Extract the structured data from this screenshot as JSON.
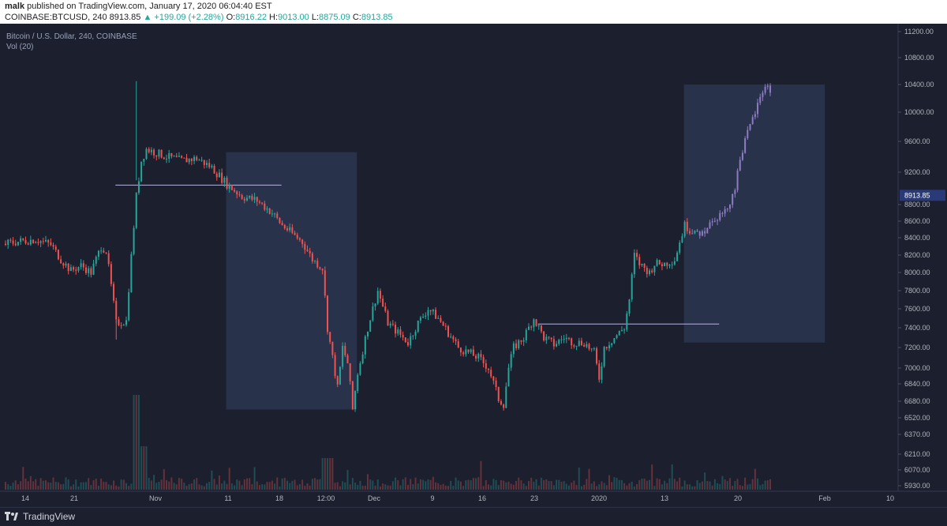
{
  "header": {
    "author": "malk",
    "published": "published on TradingView.com, January 17, 2020 06:04:40 EST",
    "symbol_line": "COINBASE:BTCUSD, 240",
    "last": "8913.85",
    "change": "▲ +199.09 (+2.28%)",
    "o_label": "O:",
    "o_value": "8916.22",
    "h_label": "H:",
    "h_value": "9013.00",
    "l_label": "L:",
    "l_value": "8875.09",
    "c_label": "C:",
    "c_value": "8913.85"
  },
  "legend": {
    "title": "Bitcoin / U.S. Dollar, 240, COINBASE",
    "volume": "Vol (20)"
  },
  "footer": {
    "brand": "TradingView"
  },
  "colors": {
    "background": "#1c1f2e",
    "up": "#26a69a",
    "down": "#ef5350",
    "highlight": "#8e7cc3",
    "box": "#2c3a55",
    "price_badge": "#2a3a78"
  },
  "chart_data": {
    "type": "candlestick",
    "instrument": "BTCUSD",
    "timeframe": "240",
    "current_price_label": "8913.85",
    "current_price": 8913.85,
    "y_ticks": [
      "11200.00",
      "10800.00",
      "10400.00",
      "10000.00",
      "9600.00",
      "9200.00",
      "8800.00",
      "8600.00",
      "8400.00",
      "8200.00",
      "8000.00",
      "7800.00",
      "7600.00",
      "7400.00",
      "7200.00",
      "7000.00",
      "6840.00",
      "6680.00",
      "6520.00",
      "6370.00",
      "6210.00",
      "6070.00",
      "5930.00"
    ],
    "x_ticks": [
      "14",
      "21",
      "Nov",
      "11",
      "18",
      "12:00",
      "Dec",
      "9",
      "16",
      "23",
      "2020",
      "13",
      "20",
      "Feb",
      "10"
    ],
    "price_path": [
      [
        0,
        8330
      ],
      [
        3,
        8360
      ],
      [
        6,
        8380
      ],
      [
        9,
        8320
      ],
      [
        11,
        8150
      ],
      [
        13,
        8020
      ],
      [
        15,
        8080
      ],
      [
        17,
        8000
      ],
      [
        19,
        8300
      ],
      [
        20,
        8250
      ],
      [
        22,
        7450
      ],
      [
        24,
        7470
      ],
      [
        26,
        8900
      ],
      [
        27,
        9350
      ],
      [
        28,
        9500
      ],
      [
        30,
        9450
      ],
      [
        32,
        9400
      ],
      [
        35,
        9350
      ],
      [
        38,
        9380
      ],
      [
        41,
        9260
      ],
      [
        44,
        9050
      ],
      [
        47,
        8900
      ],
      [
        50,
        8850
      ],
      [
        53,
        8700
      ],
      [
        55,
        8550
      ],
      [
        57,
        8450
      ],
      [
        59,
        8350
      ],
      [
        61,
        8150
      ],
      [
        63,
        8050
      ],
      [
        64,
        7400
      ],
      [
        66,
        6800
      ],
      [
        67,
        7200
      ],
      [
        68,
        7050
      ],
      [
        69,
        6600
      ],
      [
        70,
        6950
      ],
      [
        72,
        7400
      ],
      [
        74,
        7800
      ],
      [
        76,
        7450
      ],
      [
        78,
        7350
      ],
      [
        80,
        7250
      ],
      [
        82,
        7450
      ],
      [
        84,
        7600
      ],
      [
        86,
        7500
      ],
      [
        88,
        7350
      ],
      [
        90,
        7200
      ],
      [
        92,
        7150
      ],
      [
        94,
        7100
      ],
      [
        96,
        7000
      ],
      [
        98,
        6700
      ],
      [
        99,
        6650
      ],
      [
        100,
        7000
      ],
      [
        101,
        7200
      ],
      [
        103,
        7300
      ],
      [
        105,
        7500
      ],
      [
        107,
        7300
      ],
      [
        109,
        7230
      ],
      [
        111,
        7300
      ],
      [
        113,
        7250
      ],
      [
        115,
        7250
      ],
      [
        117,
        7150
      ],
      [
        118,
        6900
      ],
      [
        119,
        7200
      ],
      [
        121,
        7300
      ],
      [
        123,
        7400
      ],
      [
        124,
        7700
      ],
      [
        125,
        8200
      ],
      [
        126,
        8100
      ],
      [
        128,
        8000
      ],
      [
        129,
        8100
      ],
      [
        131,
        8100
      ],
      [
        133,
        8150
      ],
      [
        135,
        8550
      ],
      [
        137,
        8450
      ],
      [
        139,
        8500
      ],
      [
        141,
        8650
      ],
      [
        143,
        8700
      ],
      [
        145,
        9000
      ],
      [
        146,
        9400
      ],
      [
        148,
        9800
      ],
      [
        150,
        10200
      ],
      [
        151,
        10400
      ],
      [
        152,
        10300
      ]
    ],
    "annotations": {
      "box1": {
        "x0": 44,
        "x1": 70,
        "y_top": 9460,
        "y_bottom": 6600
      },
      "box2": {
        "x0": 135,
        "x1": 163,
        "y_top": 10400,
        "y_bottom": 7250
      },
      "line1": {
        "x0": 22,
        "x1": 55,
        "y": 9040
      },
      "line2": {
        "x0": 106,
        "x1": 142,
        "y": 7440
      }
    }
  }
}
